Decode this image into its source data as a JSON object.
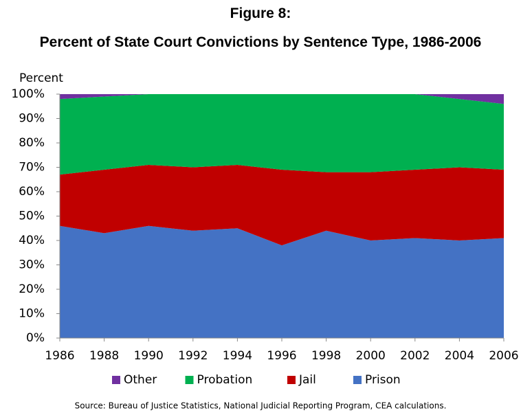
{
  "chart_data": {
    "type": "stacked_area",
    "title": "Figure 8:",
    "subtitle": "Percent of State Court Convictions by Sentence Type, 1986-2006",
    "ylabel": "Percent",
    "source": "Source: Bureau of Justice Statistics, National Judicial Reporting Program, CEA calculations.",
    "x": [
      1986,
      1988,
      1990,
      1992,
      1994,
      1996,
      1998,
      2000,
      2002,
      2004,
      2006
    ],
    "xlim": [
      1986,
      2006
    ],
    "xticks": [
      1986,
      1988,
      1990,
      1992,
      1994,
      1996,
      1998,
      2000,
      2002,
      2004,
      2006
    ],
    "ylim": [
      0,
      100
    ],
    "yticks": [
      {
        "value": 0,
        "label": "0%"
      },
      {
        "value": 10,
        "label": "10%"
      },
      {
        "value": 20,
        "label": "20%"
      },
      {
        "value": 30,
        "label": "30%"
      },
      {
        "value": 40,
        "label": "40%"
      },
      {
        "value": 50,
        "label": "50%"
      },
      {
        "value": 60,
        "label": "60%"
      },
      {
        "value": 70,
        "label": "70%"
      },
      {
        "value": 80,
        "label": "80%"
      },
      {
        "value": 90,
        "label": "90%"
      },
      {
        "value": 100,
        "label": "100%"
      }
    ],
    "legend": "bottom",
    "series": [
      {
        "name": "Other",
        "color": "#7030a0",
        "values": [
          2,
          1,
          0,
          0,
          0,
          0,
          0,
          0,
          0,
          2,
          4
        ]
      },
      {
        "name": "Probation",
        "color": "#00b050",
        "values": [
          31,
          30,
          29,
          30,
          29,
          31,
          32,
          32,
          31,
          28,
          27
        ]
      },
      {
        "name": "Jail",
        "color": "#c00000",
        "values": [
          21,
          26,
          25,
          26,
          26,
          31,
          24,
          28,
          28,
          30,
          28
        ]
      },
      {
        "name": "Prison",
        "color": "#4472c4",
        "values": [
          46,
          43,
          46,
          44,
          45,
          38,
          44,
          40,
          41,
          40,
          41
        ]
      }
    ]
  }
}
